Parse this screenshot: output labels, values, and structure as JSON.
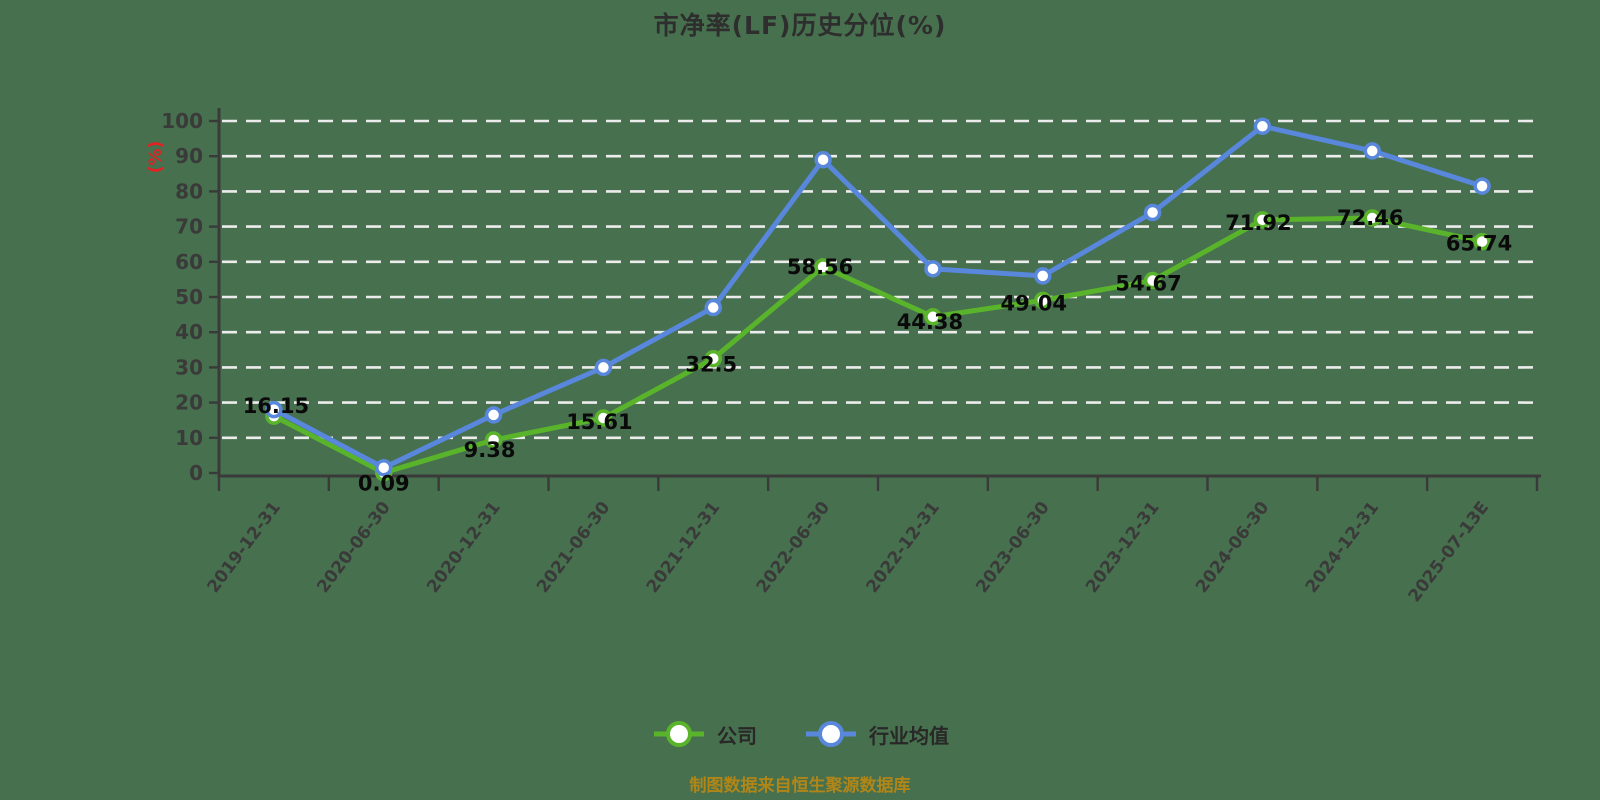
{
  "title": "市净率(LF)历史分位(%)",
  "y_axis_unit": "(%)",
  "footer": "制图数据来自恒生聚源数据库",
  "legend": [
    {
      "label": "公司",
      "color": "#59b42c"
    },
    {
      "label": "行业均值",
      "color": "#5887db"
    }
  ],
  "colors": {
    "background": "#47704e",
    "grid": "#ececec",
    "axis": "#3a3a3a",
    "tick_text": "#3a3a3a",
    "value_label": "#0a0a0a",
    "unit_red": "#e02222",
    "footer_gold": "#b08618",
    "title_text": "#2e2e2e",
    "marker_fill": "#ffffff"
  },
  "chart_data": {
    "type": "line",
    "title": "市净率(LF)历史分位(%)",
    "ylabel": "(%)",
    "ylim": [
      0,
      100
    ],
    "ytick_step": 10,
    "grid": "horizontal-dashed",
    "legend_position": "bottom",
    "categories": [
      "2019-12-31",
      "2020-06-30",
      "2020-12-31",
      "2021-06-30",
      "2021-12-31",
      "2022-06-30",
      "2022-12-31",
      "2023-06-30",
      "2023-12-31",
      "2024-06-30",
      "2024-12-31",
      "2025-07-13E"
    ],
    "series": [
      {
        "name": "公司",
        "key": "company",
        "color": "#59b42c",
        "data_labels": true,
        "values": [
          16.15,
          0.09,
          9.38,
          15.61,
          32.5,
          58.56,
          44.38,
          49.04,
          54.67,
          71.92,
          72.46,
          65.74
        ]
      },
      {
        "name": "行业均值",
        "key": "industry-average",
        "color": "#5887db",
        "data_labels": false,
        "values": [
          18,
          1.5,
          16.5,
          30,
          47,
          89,
          58,
          56,
          74,
          98.5,
          91.5,
          81.5
        ]
      }
    ]
  }
}
